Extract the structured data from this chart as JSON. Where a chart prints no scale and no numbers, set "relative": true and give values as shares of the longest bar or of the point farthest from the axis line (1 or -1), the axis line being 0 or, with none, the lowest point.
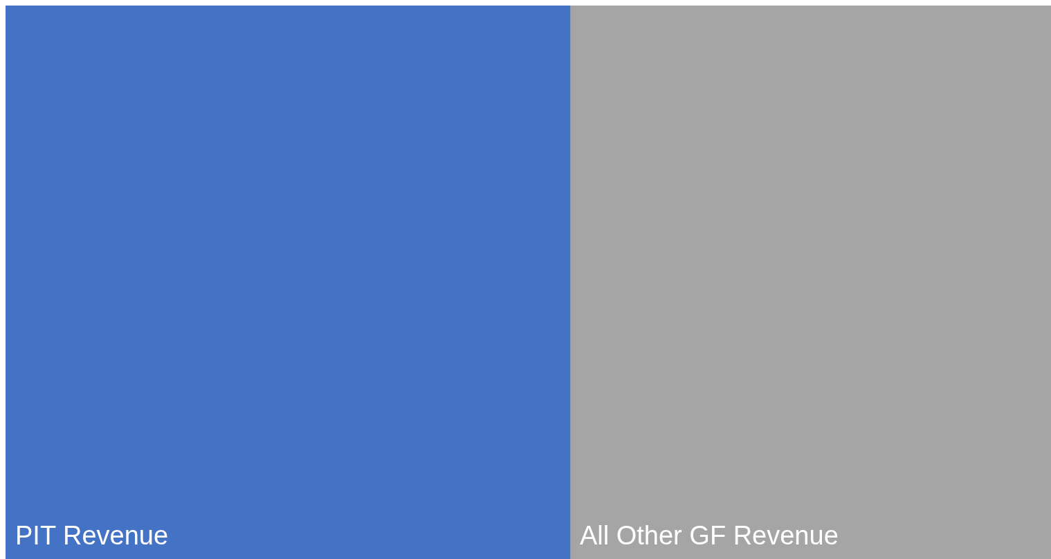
{
  "chart_data": {
    "type": "bar",
    "orientation": "horizontal",
    "stacked": true,
    "relative": true,
    "categories": [
      null
    ],
    "series": [
      {
        "name": "PIT Revenue",
        "color": "#4472c4",
        "values": [
          0.54
        ]
      },
      {
        "name": "All Other GF Revenue",
        "color": "#a5a5a5",
        "values": [
          0.46
        ]
      }
    ]
  }
}
